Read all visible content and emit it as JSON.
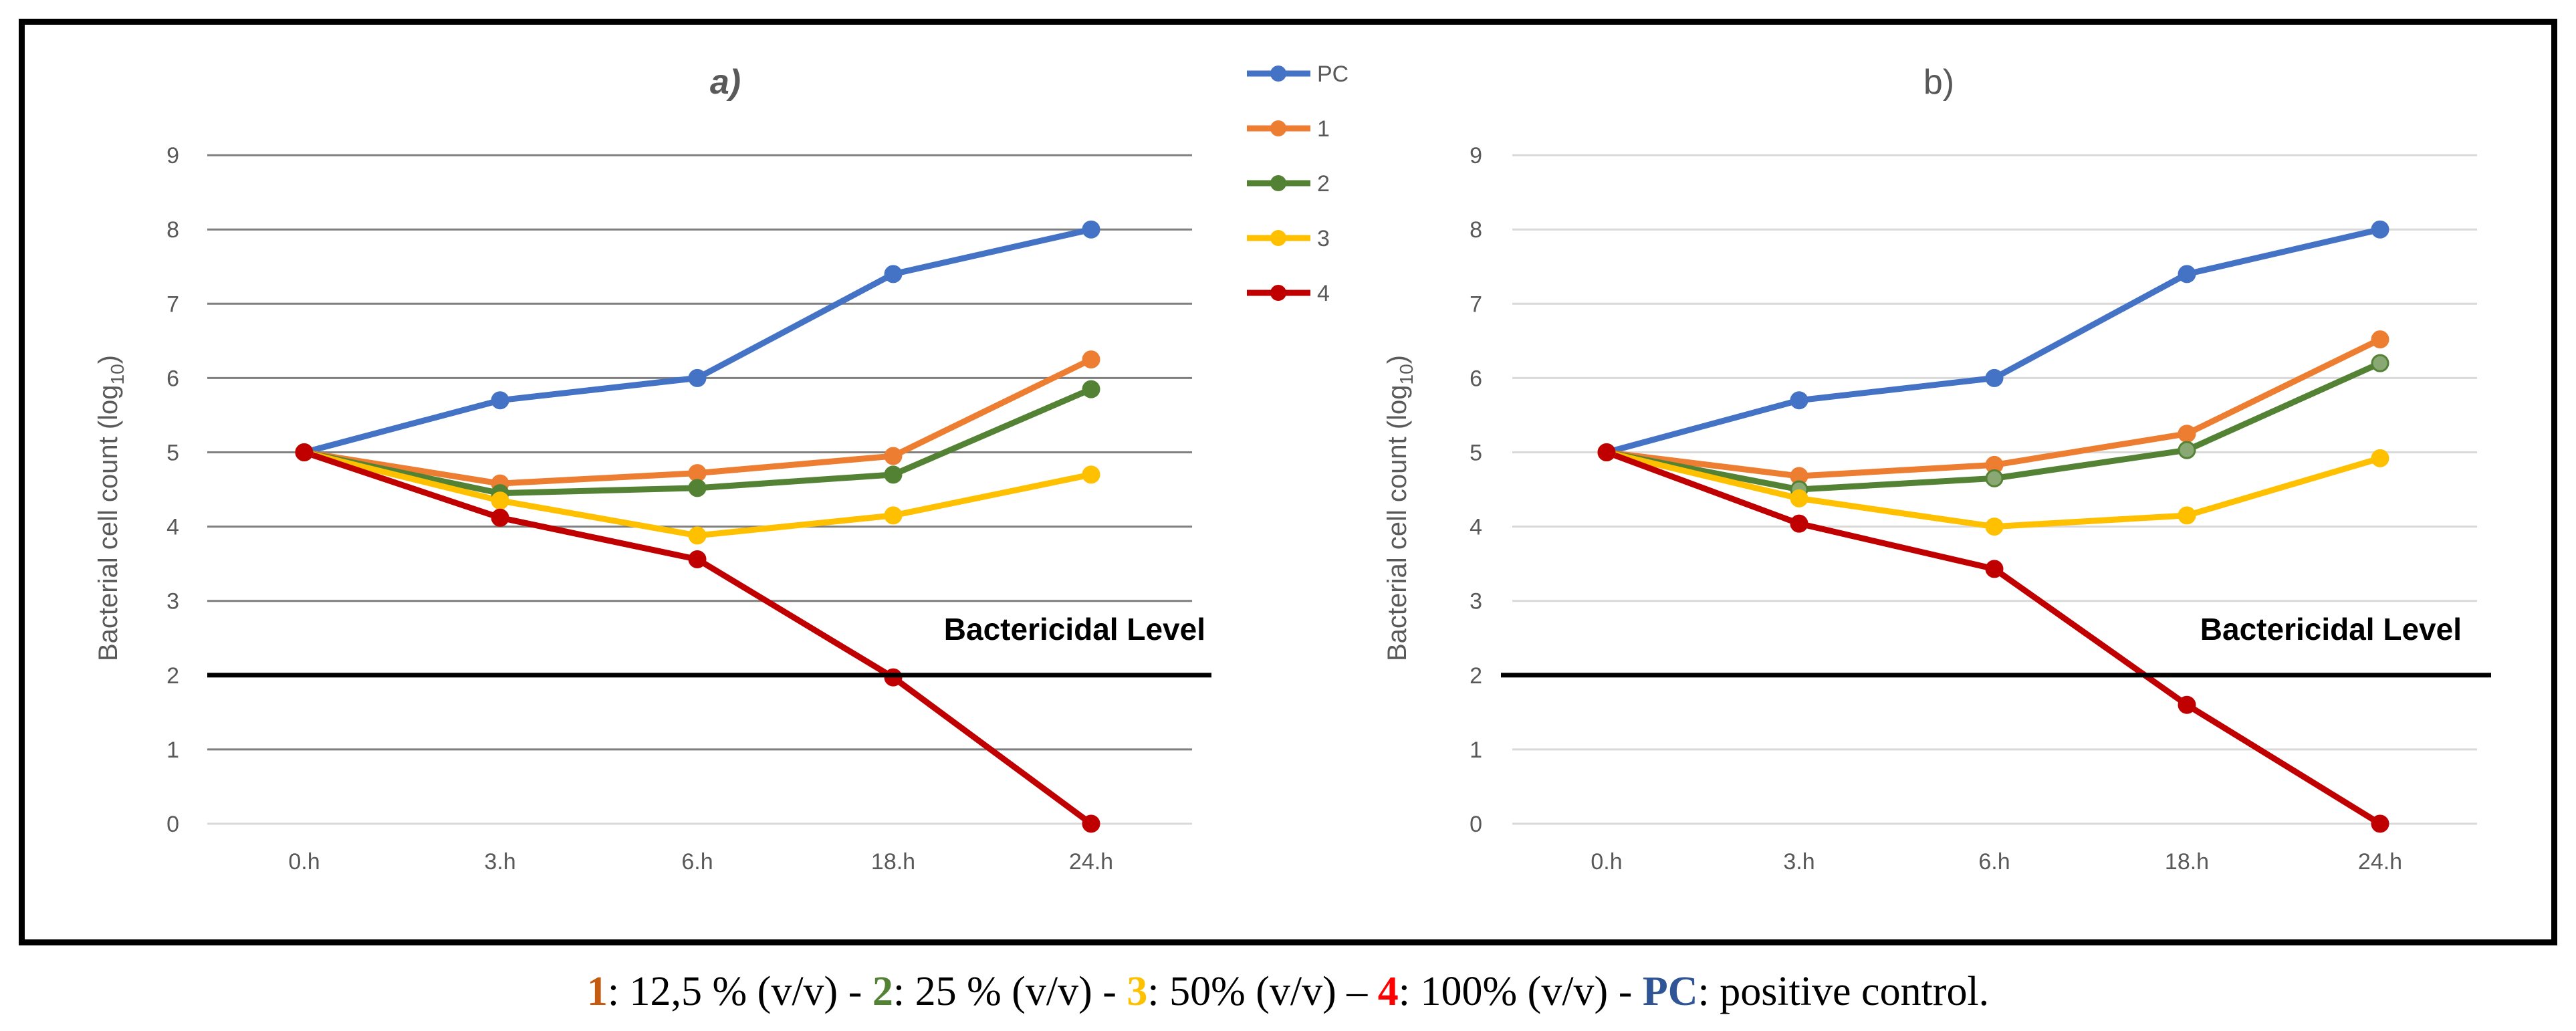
{
  "chart_data": [
    {
      "type": "line",
      "title": "a)",
      "ylabel": "Bacterial cell count (log",
      "ylabel_sub": "10",
      "ylabel_end": ")",
      "categories": [
        "0.h",
        "3.h",
        "6.h",
        "18.h",
        "24.h"
      ],
      "yticks": [
        "0",
        "1",
        "2",
        "3",
        "4",
        "5",
        "6",
        "7",
        "8",
        "9"
      ],
      "ylim": [
        0,
        9
      ],
      "grid": true,
      "threshold": {
        "value": 2,
        "label": "Bactericidal Level"
      },
      "series": [
        {
          "name": "PC",
          "color": "#4472C4",
          "values": [
            5,
            5.7,
            6.0,
            7.4,
            8.0
          ]
        },
        {
          "name": "1",
          "color": "#ED7D31",
          "values": [
            5,
            4.58,
            4.72,
            4.95,
            6.25
          ]
        },
        {
          "name": "2",
          "color": "#548235",
          "values": [
            5,
            4.45,
            4.52,
            4.7,
            5.85
          ]
        },
        {
          "name": "3",
          "color": "#FFC000",
          "values": [
            5,
            4.35,
            3.88,
            4.15,
            4.7
          ]
        },
        {
          "name": "4",
          "color": "#C00000",
          "values": [
            5,
            4.12,
            3.56,
            1.97,
            0.0
          ]
        }
      ]
    },
    {
      "type": "line",
      "title": "b)",
      "ylabel": "Bacterial cell count (log",
      "ylabel_sub": "10",
      "ylabel_end": ")",
      "categories": [
        "0.h",
        "3.h",
        "6.h",
        "18.h",
        "24.h"
      ],
      "yticks": [
        "0",
        "1",
        "2",
        "3",
        "4",
        "5",
        "6",
        "7",
        "8",
        "9"
      ],
      "ylim": [
        0,
        9
      ],
      "grid": true,
      "threshold": {
        "value": 2,
        "label": "Bactericidal Level"
      },
      "series": [
        {
          "name": "PC",
          "color": "#4472C4",
          "values": [
            5,
            5.7,
            6.0,
            7.4,
            8.0
          ]
        },
        {
          "name": "1",
          "color": "#ED7D31",
          "values": [
            5,
            4.68,
            4.83,
            5.25,
            6.52
          ]
        },
        {
          "name": "2",
          "color": "#548235",
          "values": [
            5,
            4.5,
            4.65,
            5.03,
            6.2
          ]
        },
        {
          "name": "3",
          "color": "#FFC000",
          "values": [
            5,
            4.38,
            4.0,
            4.15,
            4.92
          ]
        },
        {
          "name": "4",
          "color": "#C00000",
          "values": [
            5,
            4.04,
            3.43,
            1.6,
            0.0
          ]
        }
      ]
    }
  ],
  "legend": [
    "PC",
    "1",
    "2",
    "3",
    "4"
  ],
  "caption": {
    "k1": "1",
    "t1": ": 12,5 % (v/v) - ",
    "k2": "2",
    "t2": ": 25 % (v/v) - ",
    "k3": "3",
    "t3": ": 50% (v/v) – ",
    "k4": "4",
    "t4": ": 100% (v/v) - ",
    "k5": "PC",
    "t5": ": positive control."
  },
  "colors": {
    "k1": "#C55A11",
    "k2": "#548235",
    "k3": "#FFC000",
    "k4": "#FF0000",
    "k5": "#2F5597"
  }
}
